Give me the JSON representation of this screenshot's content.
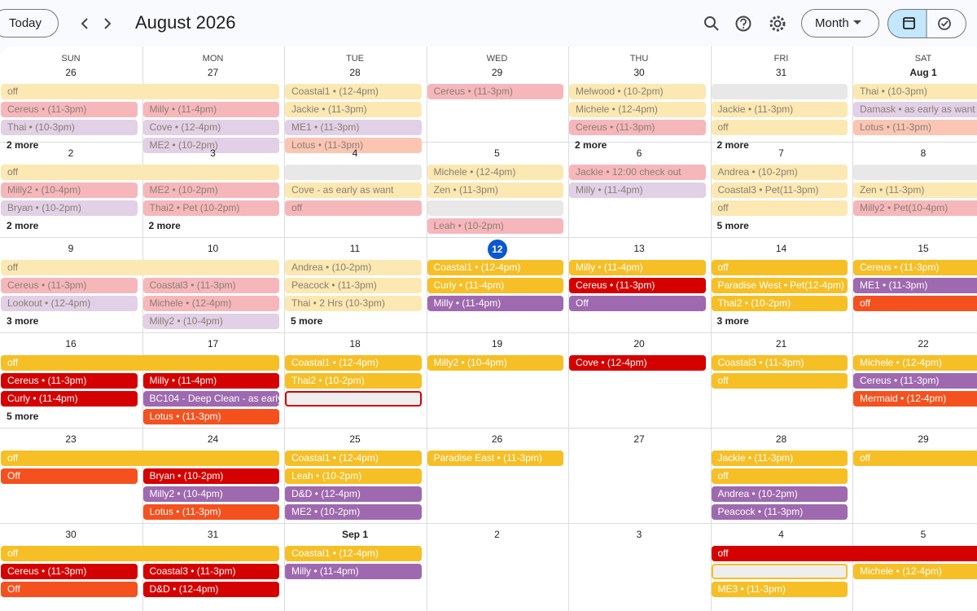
{
  "header": {
    "today": "Today",
    "title": "August 2026",
    "view": "Month"
  },
  "weekdays": [
    "SUN",
    "MON",
    "TUE",
    "WED",
    "THU",
    "FRI",
    "SAT"
  ],
  "weeks": [
    {
      "days": [
        {
          "date": "26",
          "past": true,
          "events": [
            {
              "text": "off",
              "color": "#fce8b2",
              "span": 2
            },
            {
              "text": "Cereus • (11-3pm)",
              "color": "#f6b7bb"
            },
            {
              "text": "Thai • (10-3pm)",
              "color": "#e1d0e6"
            }
          ],
          "more": "2 more"
        },
        {
          "date": "27",
          "past": true,
          "events": [
            null,
            {
              "text": "Milly • (11-4pm)",
              "color": "#f6b7bb"
            },
            {
              "text": "Cove • (12-4pm)",
              "color": "#e1d0e6"
            },
            {
              "text": "ME2 • (10-2pm)",
              "color": "#e1d0e6"
            }
          ]
        },
        {
          "date": "28",
          "past": true,
          "events": [
            {
              "text": "Coastal1 • (12-4pm)",
              "color": "#fce8b2"
            },
            {
              "text": "Jackie • (11-3pm)",
              "color": "#fce8b2"
            },
            {
              "text": "ME1 • (11-3pm)",
              "color": "#e1d0e6"
            },
            {
              "text": "Lotus • (11-3pm)",
              "color": "#fbc5b4"
            }
          ]
        },
        {
          "date": "29",
          "past": true,
          "events": [
            {
              "text": "Cereus • (11-3pm)",
              "color": "#f6b7bb"
            }
          ]
        },
        {
          "date": "30",
          "past": true,
          "events": [
            {
              "text": "Melwood • (10-2pm)",
              "color": "#fce8b2"
            },
            {
              "text": "Michele • (12-4pm)",
              "color": "#fce8b2"
            },
            {
              "text": "Cereus • (11-3pm)",
              "color": "#f6b7bb"
            }
          ],
          "more": "2 more"
        },
        {
          "date": "31",
          "past": true,
          "events": [
            {
              "color": "#e8e8e8"
            },
            {
              "text": "Jackie • (11-3pm)",
              "color": "#fce8b2"
            },
            {
              "text": "off",
              "color": "#fce8b2"
            }
          ],
          "more": "2 more"
        },
        {
          "date": "Aug 1",
          "past": true,
          "events": [
            {
              "text": "Thai • (10-3pm)",
              "color": "#fce8b2"
            },
            {
              "text": "Damask • as early as want",
              "color": "#e1d0e6"
            },
            {
              "text": "Lotus • (11-3pm)",
              "color": "#fbc5b4"
            }
          ]
        }
      ]
    },
    {
      "days": [
        {
          "date": "2",
          "past": true,
          "events": [
            {
              "text": "off",
              "color": "#fce8b2",
              "span": 2
            },
            {
              "text": "Milly2 • (10-4pm)",
              "color": "#f6b7bb"
            },
            {
              "text": "Bryan • (10-2pm)",
              "color": "#e1d0e6"
            }
          ],
          "more": "2 more"
        },
        {
          "date": "3",
          "past": true,
          "events": [
            null,
            {
              "text": "ME2 • (10-2pm)",
              "color": "#f6b7bb"
            },
            {
              "text": "Thai2 • Pet (10-2pm)",
              "color": "#f6b7bb"
            }
          ],
          "more": "2 more"
        },
        {
          "date": "4",
          "past": true,
          "events": [
            {
              "color": "#e8e8e8"
            },
            {
              "text": "Cove - as early as want",
              "color": "#fce8b2"
            },
            {
              "text": "off",
              "color": "#f6b7bb"
            }
          ]
        },
        {
          "date": "5",
          "past": true,
          "events": [
            {
              "text": "Michele • (12-4pm)",
              "color": "#fce8b2"
            },
            {
              "text": "Zen • (11-3pm)",
              "color": "#fce8b2"
            },
            {
              "color": "#e8e8e8"
            },
            {
              "text": "Leah • (10-2pm)",
              "color": "#f6b7bb"
            }
          ]
        },
        {
          "date": "6",
          "past": true,
          "events": [
            {
              "text": "Jackie • 12:00 check out",
              "color": "#f6b7bb"
            },
            {
              "text": "Milly • (11-4pm)",
              "color": "#e1d0e6"
            }
          ]
        },
        {
          "date": "7",
          "past": true,
          "events": [
            {
              "text": "Andrea • (10-2pm)",
              "color": "#fce8b2"
            },
            {
              "text": "Coastal3 • Pet(11-3pm)",
              "color": "#fce8b2"
            },
            {
              "text": "off",
              "color": "#fce8b2"
            }
          ],
          "more": "5 more"
        },
        {
          "date": "8",
          "past": true,
          "events": [
            {
              "color": "#e8e8e8"
            },
            {
              "text": "Zen • (11-3pm)",
              "color": "#fce8b2"
            },
            {
              "text": "Milly2 • Pet(10-4pm)",
              "color": "#f6b7bb"
            }
          ]
        }
      ]
    },
    {
      "days": [
        {
          "date": "9",
          "past": true,
          "events": [
            {
              "text": "off",
              "color": "#fce8b2",
              "span": 2
            },
            {
              "text": "Cereus • (11-3pm)",
              "color": "#f6b7bb"
            },
            {
              "text": "Lookout • (12-4pm)",
              "color": "#e1d0e6"
            }
          ],
          "more": "3 more"
        },
        {
          "date": "10",
          "past": true,
          "events": [
            null,
            {
              "text": "Coastal3 • (11-3pm)",
              "color": "#f6b7bb"
            },
            {
              "text": "Michele • (12-4pm)",
              "color": "#f6b7bb"
            },
            {
              "text": "Milly2 • (10-4pm)",
              "color": "#e1d0e6"
            }
          ]
        },
        {
          "date": "11",
          "past": true,
          "events": [
            {
              "text": "Andrea • (10-2pm)",
              "color": "#fce8b2"
            },
            {
              "text": "Peacock • (11-3pm)",
              "color": "#fce8b2"
            },
            {
              "text": "Thai • 2 Hrs (10-3pm)",
              "color": "#fce8b2"
            }
          ],
          "more": "5 more"
        },
        {
          "date": "12",
          "today": true,
          "events": [
            {
              "text": "Coastal1 • (12-4pm)",
              "color": "#f6bf26"
            },
            {
              "text": "Curly • (11-4pm)",
              "color": "#f6bf26"
            },
            {
              "text": "Milly • (11-4pm)",
              "color": "#9e69af"
            }
          ]
        },
        {
          "date": "13",
          "events": [
            {
              "text": "Milly • (11-4pm)",
              "color": "#f6bf26"
            },
            {
              "text": "Cereus • (11-3pm)",
              "color": "#d50000"
            },
            {
              "text": "Off",
              "color": "#9e69af"
            }
          ]
        },
        {
          "date": "14",
          "events": [
            {
              "text": "off",
              "color": "#f6bf26"
            },
            {
              "text": "Paradise West • Pet(12-4pm)",
              "color": "#f6bf26"
            },
            {
              "text": "Thai2 • (10-2pm)",
              "color": "#f6bf26"
            }
          ],
          "more": "3 more"
        },
        {
          "date": "15",
          "events": [
            {
              "text": "Cereus • (11-3pm)",
              "color": "#f6bf26"
            },
            {
              "text": "ME1 • (11-3pm)",
              "color": "#9e69af"
            },
            {
              "text": "off",
              "color": "#f4511e"
            }
          ]
        }
      ]
    },
    {
      "days": [
        {
          "date": "16",
          "events": [
            {
              "text": "off",
              "color": "#f6bf26",
              "span": 2
            },
            {
              "text": "Cereus • (11-3pm)",
              "color": "#d50000"
            },
            {
              "text": "Curly • (11-4pm)",
              "color": "#d50000"
            }
          ],
          "more": "5 more"
        },
        {
          "date": "17",
          "events": [
            null,
            {
              "text": "Milly • (11-4pm)",
              "color": "#d50000"
            },
            {
              "text": "BC104 - Deep Clean - as early as want",
              "color": "#9e69af"
            },
            {
              "text": "Lotus • (11-3pm)",
              "color": "#f4511e"
            }
          ]
        },
        {
          "date": "18",
          "events": [
            {
              "text": "Coastal1 • (12-4pm)",
              "color": "#f6bf26"
            },
            {
              "text": "Thai2 • (10-2pm)",
              "color": "#f6bf26"
            },
            {
              "color": "#eeeeee",
              "border": "#d50000"
            }
          ]
        },
        {
          "date": "19",
          "events": [
            {
              "text": "Milly2 • (10-4pm)",
              "color": "#f6bf26"
            }
          ]
        },
        {
          "date": "20",
          "events": [
            {
              "text": "Cove • (12-4pm)",
              "color": "#d50000"
            }
          ]
        },
        {
          "date": "21",
          "events": [
            {
              "text": "Coastal3 • (11-3pm)",
              "color": "#f6bf26"
            },
            {
              "text": "off",
              "color": "#f6bf26"
            }
          ]
        },
        {
          "date": "22",
          "events": [
            {
              "text": "Michele • (12-4pm)",
              "color": "#f6bf26"
            },
            {
              "text": "Cereus • (11-3pm)",
              "color": "#9e69af"
            },
            {
              "text": "Mermaid • (12-4pm)",
              "color": "#f4511e"
            }
          ]
        }
      ]
    },
    {
      "days": [
        {
          "date": "23",
          "events": [
            {
              "text": "off",
              "color": "#f6bf26",
              "span": 2
            },
            {
              "text": "Off",
              "color": "#f4511e"
            }
          ]
        },
        {
          "date": "24",
          "events": [
            null,
            {
              "text": "Bryan • (10-2pm)",
              "color": "#d50000"
            },
            {
              "text": "Milly2 • (10-4pm)",
              "color": "#9e69af"
            },
            {
              "text": "Lotus • (11-3pm)",
              "color": "#f4511e"
            }
          ]
        },
        {
          "date": "25",
          "events": [
            {
              "text": "Coastal1 • (12-4pm)",
              "color": "#f6bf26"
            },
            {
              "text": "Leah • (10-2pm)",
              "color": "#f6bf26"
            },
            {
              "text": "D&D • (12-4pm)",
              "color": "#9e69af"
            },
            {
              "text": "ME2 • (10-2pm)",
              "color": "#9e69af"
            }
          ]
        },
        {
          "date": "26",
          "events": [
            {
              "text": "Paradise East • (11-3pm)",
              "color": "#f6bf26"
            }
          ]
        },
        {
          "date": "27",
          "events": []
        },
        {
          "date": "28",
          "events": [
            {
              "text": "Jackie • (11-3pm)",
              "color": "#f6bf26"
            },
            {
              "text": "off",
              "color": "#f6bf26"
            },
            {
              "text": "Andrea • (10-2pm)",
              "color": "#9e69af"
            },
            {
              "text": "Peacock • (11-3pm)",
              "color": "#9e69af"
            }
          ]
        },
        {
          "date": "29",
          "events": [
            {
              "text": "off",
              "color": "#f6bf26"
            }
          ]
        }
      ]
    },
    {
      "days": [
        {
          "date": "30",
          "events": [
            {
              "text": "off",
              "color": "#f6bf26",
              "span": 2
            },
            {
              "text": "Cereus • (11-3pm)",
              "color": "#d50000"
            },
            {
              "text": "Off",
              "color": "#f4511e"
            }
          ]
        },
        {
          "date": "31",
          "events": [
            null,
            {
              "text": "Coastal3 • (11-3pm)",
              "color": "#d50000"
            },
            {
              "text": "D&D • (12-4pm)",
              "color": "#d50000"
            }
          ]
        },
        {
          "date": "Sep 1",
          "events": [
            {
              "text": "Coastal1 • (12-4pm)",
              "color": "#f6bf26"
            },
            {
              "text": "Milly • (11-4pm)",
              "color": "#9e69af"
            }
          ]
        },
        {
          "date": "2",
          "events": []
        },
        {
          "date": "3",
          "events": []
        },
        {
          "date": "4",
          "events": [
            {
              "text": "off",
              "color": "#d50000",
              "span": 2
            },
            {
              "color": "#eeeeee",
              "border": "#f6bf26"
            },
            {
              "text": "ME3 • (11-3pm)",
              "color": "#f6bf26"
            }
          ]
        },
        {
          "date": "5",
          "events": [
            null,
            {
              "text": "Michele • (12-4pm)",
              "color": "#f6bf26"
            }
          ]
        }
      ]
    }
  ]
}
